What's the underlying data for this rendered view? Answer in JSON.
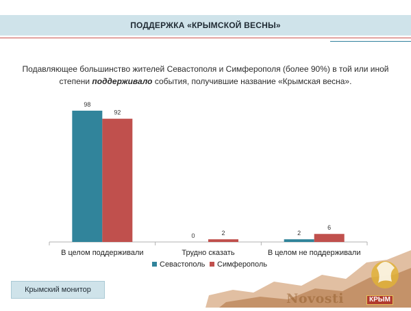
{
  "header": {
    "title": "ПОДДЕРЖКА «КРЫМСКОЙ ВЕСНЫ»"
  },
  "subtitle": {
    "line1": "Подавляющее большинство жителей  Севастополя и Симферополя (более 90%) в той или иной",
    "line2_before": "степени ",
    "line2_emphasis": "поддерживало",
    "line2_after": " события, получившие название «Крымская весна»."
  },
  "chart_data": {
    "type": "bar",
    "categories": [
      "В целом поддерживали",
      "Трудно сказать",
      "В целом не поддерживали"
    ],
    "series": [
      {
        "name": "Севастополь",
        "values": [
          98,
          0,
          2
        ],
        "color": "#31849b"
      },
      {
        "name": "Симферополь",
        "values": [
          92,
          2,
          6
        ],
        "color": "#c0504d"
      }
    ],
    "ylim": [
      0,
      100
    ],
    "legend": "bottom",
    "grid": false
  },
  "footer": {
    "label": "Крымский монитор"
  },
  "watermark": {
    "text": "Novosti",
    "brand": "КРЫМ"
  }
}
